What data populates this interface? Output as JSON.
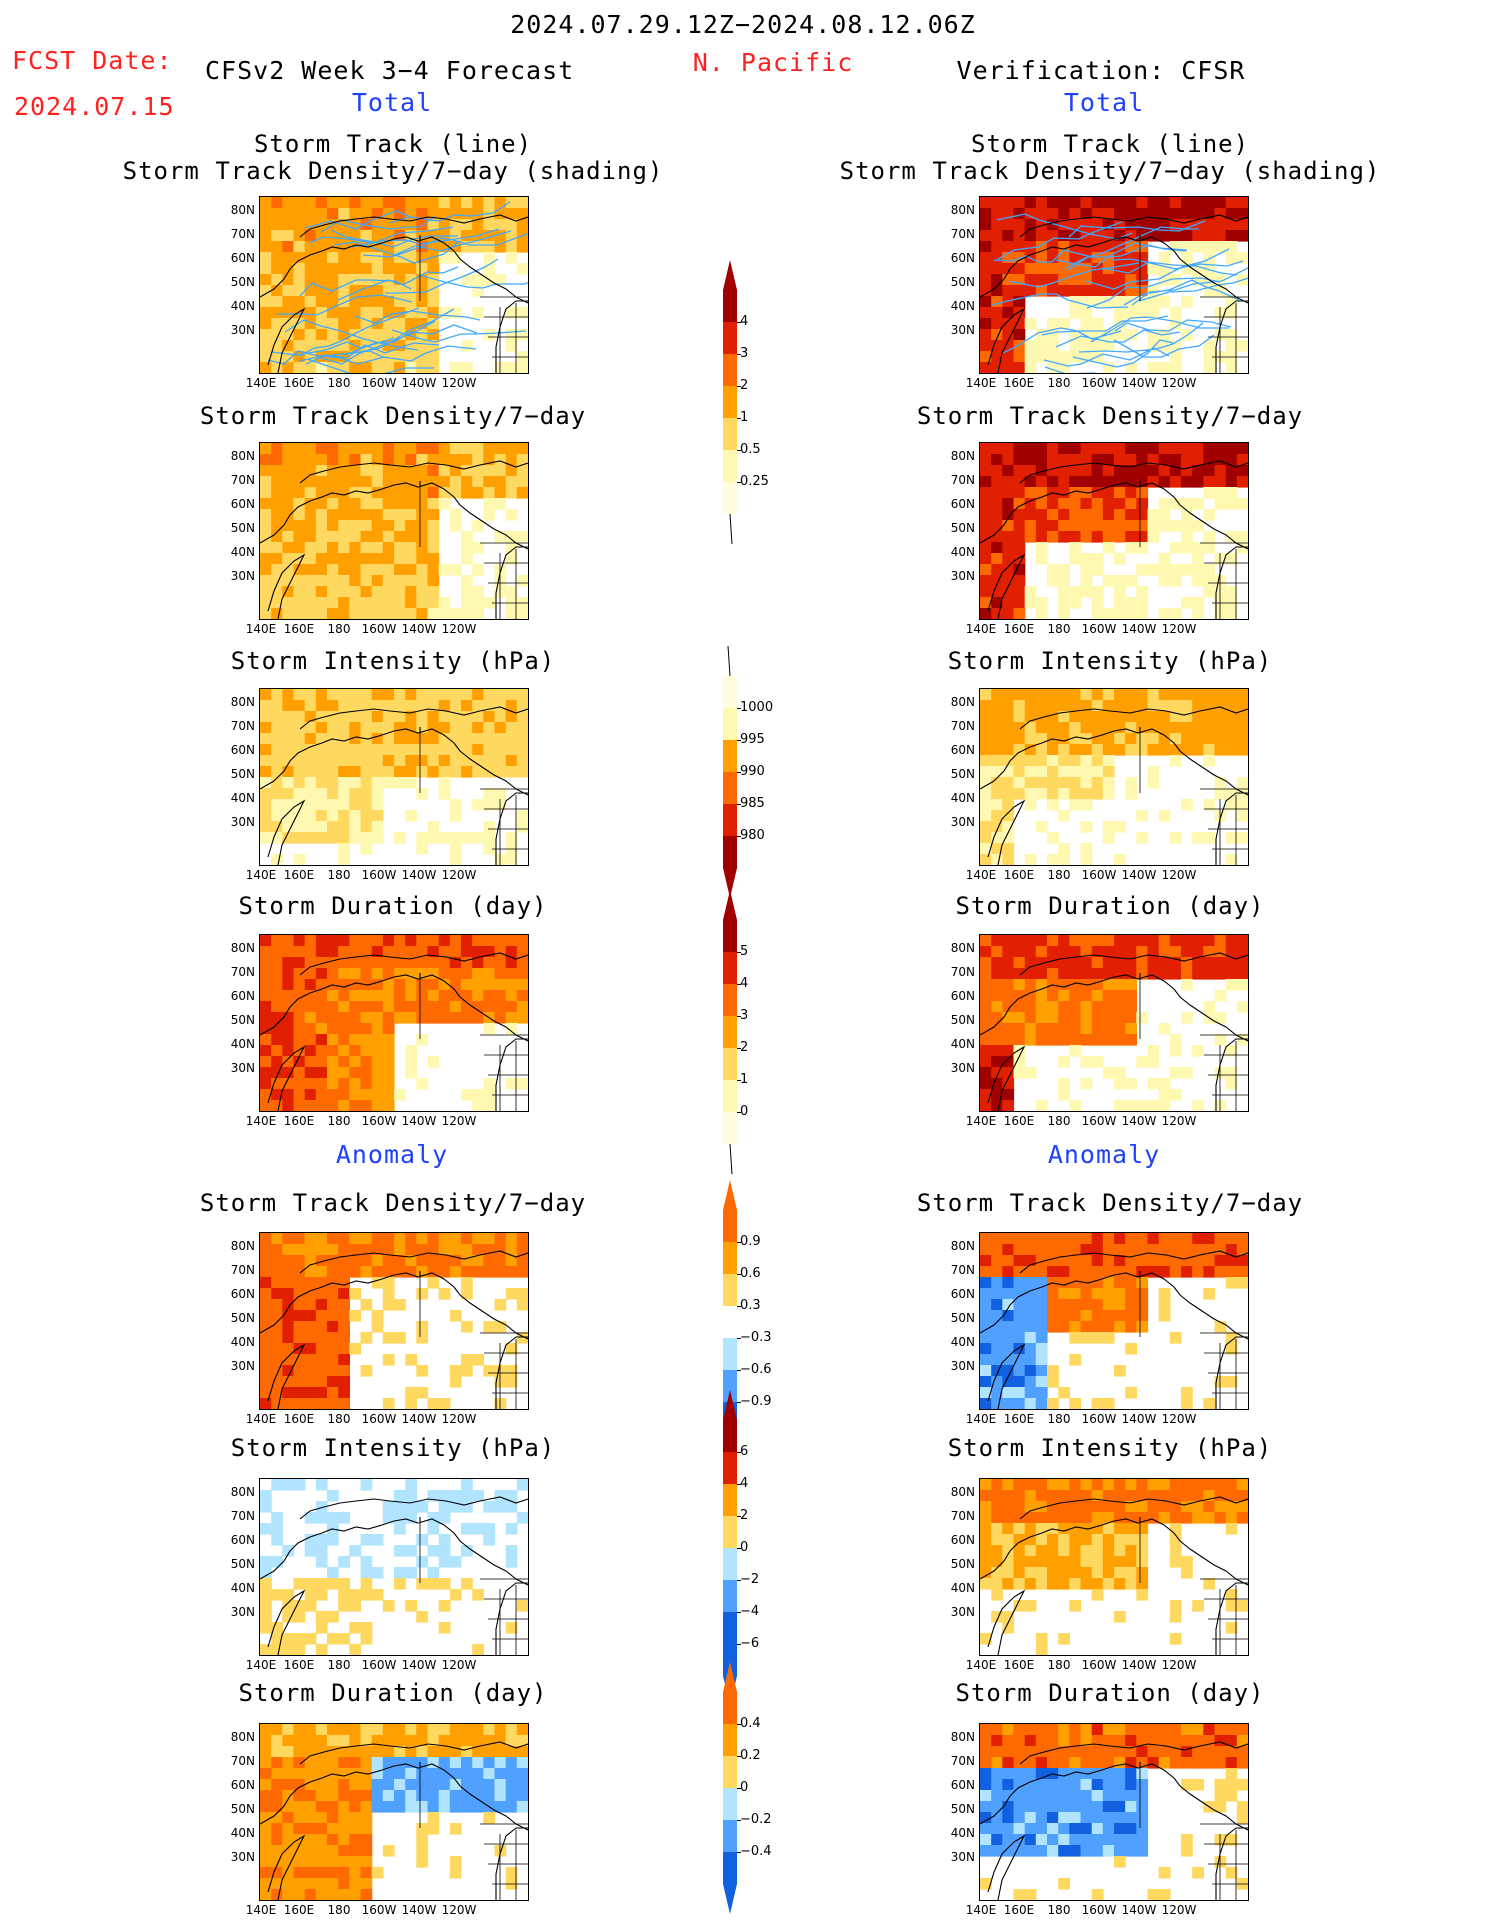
{
  "header": {
    "date_range": "2024.07.29.12Z−2024.08.12.06Z",
    "fcst_label": "FCST Date:",
    "fcst_date": "2024.07.15",
    "model": "CFSv2 Week 3−4 Forecast",
    "region": "N. Pacific",
    "verification": "Verification: CFSR",
    "left_subtitle": "Total",
    "right_subtitle": "Total",
    "left_anomaly": "Anomaly",
    "right_anomaly": "Anomaly"
  },
  "panel_titles": {
    "track_line": "Storm Track (line)",
    "track_shading": "Storm Track Density/7−day (shading)",
    "density": "Storm Track Density/7−day",
    "intensity": "Storm Intensity (hPa)",
    "duration": "Storm Duration (day)"
  },
  "axes": {
    "lat": [
      "80N",
      "70N",
      "60N",
      "50N",
      "40N",
      "30N"
    ],
    "lon": [
      "140E",
      "160E",
      "180",
      "160W",
      "140W",
      "120W"
    ]
  },
  "colorbars": {
    "density": [
      "4",
      "3",
      "2",
      "1",
      "0.5",
      "0.25"
    ],
    "intensity": [
      "1000",
      "995",
      "990",
      "985",
      "980"
    ],
    "duration": [
      "5",
      "4",
      "3",
      "2",
      "1",
      "0"
    ],
    "density_anom": [
      "0.9",
      "0.6",
      "0.3",
      "−0.3",
      "−0.6",
      "−0.9"
    ],
    "intensity_anom": [
      "6",
      "4",
      "2",
      "0",
      "−2",
      "−4",
      "−6"
    ],
    "duration_anom": [
      "0.4",
      "0.2",
      "0",
      "−0.2",
      "−0.4"
    ]
  },
  "colors": {
    "yellow_light": "#fff8b0",
    "yellow": "#ffd860",
    "orange": "#ffa000",
    "dark_orange": "#ff6a00",
    "red": "#e02000",
    "dark_red": "#a00000",
    "light_blue": "#b0e4ff",
    "blue": "#50a0ff",
    "dark_blue": "#1060e0",
    "track_line": "#40a8ff"
  }
}
